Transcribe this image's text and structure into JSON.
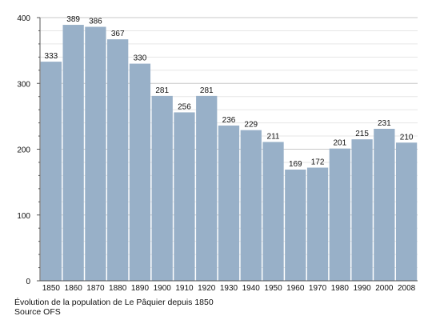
{
  "chart_data": {
    "type": "bar",
    "categories": [
      "1850",
      "1860",
      "1870",
      "1880",
      "1890",
      "1900",
      "1910",
      "1920",
      "1930",
      "1940",
      "1950",
      "1960",
      "1970",
      "1980",
      "1990",
      "2000",
      "2008"
    ],
    "values": [
      333,
      389,
      386,
      367,
      330,
      281,
      256,
      281,
      236,
      229,
      211,
      169,
      172,
      201,
      215,
      231,
      210
    ],
    "ylim": [
      0,
      400
    ],
    "yticks": [
      0,
      100,
      200,
      300,
      400
    ],
    "grid": true,
    "bar_color": "#98b0c8",
    "caption": "Évolution de la population de Le Pâquier depuis 1850",
    "source": "Source OFS"
  }
}
